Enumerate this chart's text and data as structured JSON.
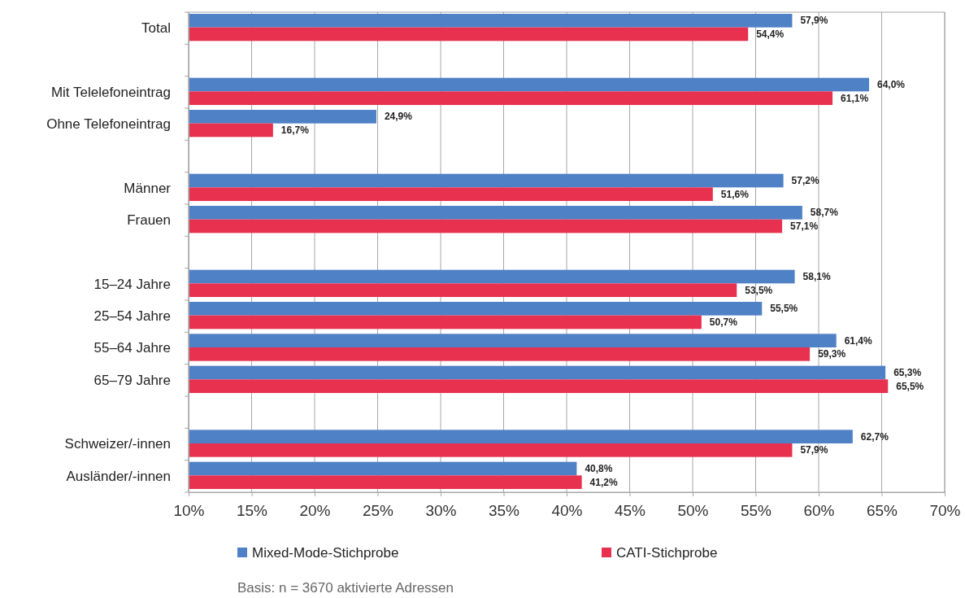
{
  "chart_data": {
    "type": "bar",
    "orientation": "horizontal",
    "categories": [
      "Total",
      null,
      "Mit Telelefoneintrag",
      "Ohne Telefoneintrag",
      null,
      "Männer",
      "Frauen",
      null,
      "15–24 Jahre",
      "25–54 Jahre",
      "55–64 Jahre",
      "65–79 Jahre",
      null,
      "Schweizer/-innen",
      "Ausländer/-innen"
    ],
    "series": [
      {
        "name": "Mixed-Mode-Stichprobe",
        "color": "#4f81c7",
        "values": [
          57.9,
          null,
          64.0,
          24.9,
          null,
          57.2,
          58.7,
          null,
          58.1,
          55.5,
          61.4,
          65.3,
          null,
          62.7,
          40.8
        ],
        "value_labels": [
          "57,9%",
          null,
          "64,0%",
          "24,9%",
          null,
          "57,2%",
          "58,7%",
          null,
          "58,1%",
          "55,5%",
          "61,4%",
          "65,3%",
          null,
          "62,7%",
          "40,8%"
        ]
      },
      {
        "name": "CATI-Stichprobe",
        "color": "#e8304f",
        "values": [
          54.4,
          null,
          61.1,
          16.7,
          null,
          51.6,
          57.1,
          null,
          53.5,
          50.7,
          59.3,
          65.5,
          null,
          57.9,
          41.2
        ],
        "value_labels": [
          "54,4%",
          null,
          "61,1%",
          "16,7%",
          null,
          "51,6%",
          "57,1%",
          null,
          "53,5%",
          "50,7%",
          "59,3%",
          "65,5%",
          null,
          "57,9%",
          "41,2%"
        ]
      }
    ],
    "xlim": [
      10,
      70
    ],
    "xticks": [
      {
        "value": 10,
        "label": "10%"
      },
      {
        "value": 15,
        "label": "15%"
      },
      {
        "value": 20,
        "label": "20%"
      },
      {
        "value": 25,
        "label": "25%"
      },
      {
        "value": 30,
        "label": "30%"
      },
      {
        "value": 35,
        "label": "35%"
      },
      {
        "value": 40,
        "label": "40%"
      },
      {
        "value": 45,
        "label": "45%"
      },
      {
        "value": 50,
        "label": "50%"
      },
      {
        "value": 55,
        "label": "55%"
      },
      {
        "value": 60,
        "label": "60%"
      },
      {
        "value": 65,
        "label": "65%"
      },
      {
        "value": 70,
        "label": "70%"
      }
    ],
    "grid": "x",
    "legend": "bottom",
    "annotations": [
      "Basis: n = 3670 aktivierte Adressen"
    ]
  }
}
